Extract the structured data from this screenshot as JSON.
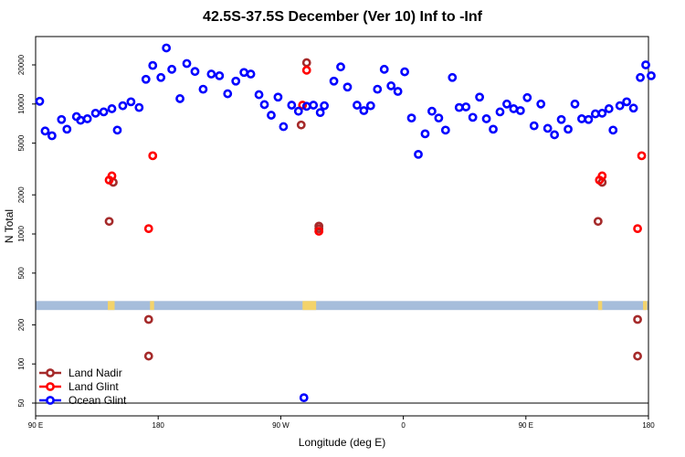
{
  "chart_data": {
    "type": "scatter",
    "title": "42.5S-37.5S December (Ver 10)   Inf to -Inf",
    "xlabel": "Longitude (deg E)",
    "ylabel": "N Total",
    "y_scale": "log",
    "ylim": [
      50,
      35000
    ],
    "x_ticks": [
      {
        "value": 90,
        "label": "90 E"
      },
      {
        "value": 180,
        "label": "180"
      },
      {
        "value": 270,
        "label": "90 W"
      },
      {
        "value": 360,
        "label": "0"
      },
      {
        "value": 450,
        "label": "90 E"
      },
      {
        "value": 540,
        "label": "180"
      }
    ],
    "xlim": [
      90,
      540
    ],
    "y_ticks": [
      50,
      100,
      200,
      500,
      1000,
      2000,
      5000,
      10000,
      20000
    ],
    "y_tick_labels": [
      "50",
      "100",
      "200",
      "500",
      "1000",
      "2000",
      "5000",
      "10000",
      "20000"
    ],
    "legend": {
      "position": "bottom-left"
    },
    "reference_line": 50,
    "land_band": {
      "y_range": [
        260,
        305
      ],
      "ocean_color": "#a6bddb",
      "land_color": "#f3d36b",
      "land_segments": [
        [
          143,
          148
        ],
        [
          174,
          177
        ],
        [
          286,
          296
        ],
        [
          503,
          506
        ],
        [
          536,
          539
        ]
      ]
    },
    "series": [
      {
        "name": "Land Nadir",
        "color": "#a52a2a",
        "points": [
          [
            144,
            1250
          ],
          [
            147,
            2500
          ],
          [
            173,
            220
          ],
          [
            173,
            115
          ],
          [
            285,
            6900
          ],
          [
            289,
            20800
          ],
          [
            298,
            1150
          ],
          [
            298,
            1100
          ],
          [
            503,
            1250
          ],
          [
            506,
            2500
          ],
          [
            532,
            220
          ],
          [
            532,
            115
          ]
        ]
      },
      {
        "name": "Land Glint",
        "color": "#ff0000",
        "points": [
          [
            144,
            2600
          ],
          [
            146,
            2800
          ],
          [
            173,
            1100
          ],
          [
            176,
            4000
          ],
          [
            286,
            9800
          ],
          [
            289,
            18200
          ],
          [
            298,
            1050
          ],
          [
            504,
            2600
          ],
          [
            506,
            2800
          ],
          [
            532,
            1100
          ],
          [
            535,
            4000
          ]
        ]
      },
      {
        "name": "Ocean Glint",
        "color": "#0000ff",
        "points": [
          [
            93,
            10500
          ],
          [
            97,
            6200
          ],
          [
            102,
            5700
          ],
          [
            109,
            7600
          ],
          [
            113,
            6400
          ],
          [
            120,
            8000
          ],
          [
            123,
            7500
          ],
          [
            128,
            7700
          ],
          [
            134,
            8500
          ],
          [
            140,
            8700
          ],
          [
            146,
            9200
          ],
          [
            150,
            6300
          ],
          [
            154,
            9700
          ],
          [
            160,
            10400
          ],
          [
            166,
            9400
          ],
          [
            171,
            15500
          ],
          [
            176,
            19800
          ],
          [
            182,
            16000
          ],
          [
            186,
            27000
          ],
          [
            190,
            18500
          ],
          [
            196,
            11000
          ],
          [
            201,
            20500
          ],
          [
            207,
            17800
          ],
          [
            213,
            13000
          ],
          [
            219,
            17000
          ],
          [
            225,
            16500
          ],
          [
            231,
            12000
          ],
          [
            237,
            15000
          ],
          [
            243,
            17500
          ],
          [
            248,
            17000
          ],
          [
            254,
            11800
          ],
          [
            258,
            9900
          ],
          [
            263,
            8200
          ],
          [
            268,
            11300
          ],
          [
            272,
            6700
          ],
          [
            278,
            9800
          ],
          [
            283,
            8800
          ],
          [
            289,
            9600
          ],
          [
            294,
            9800
          ],
          [
            299,
            8600
          ],
          [
            287,
            55
          ],
          [
            302,
            9700
          ],
          [
            309,
            15000
          ],
          [
            314,
            19300
          ],
          [
            319,
            13500
          ],
          [
            326,
            9800
          ],
          [
            331,
            8900
          ],
          [
            336,
            9700
          ],
          [
            341,
            13000
          ],
          [
            346,
            18500
          ],
          [
            351,
            13800
          ],
          [
            356,
            12500
          ],
          [
            361,
            17700
          ],
          [
            366,
            7800
          ],
          [
            371,
            4100
          ],
          [
            376,
            5900
          ],
          [
            381,
            8800
          ],
          [
            386,
            7800
          ],
          [
            391,
            6300
          ],
          [
            396,
            16000
          ],
          [
            401,
            9400
          ],
          [
            406,
            9500
          ],
          [
            411,
            7900
          ],
          [
            416,
            11300
          ],
          [
            421,
            7700
          ],
          [
            426,
            6400
          ],
          [
            431,
            8700
          ],
          [
            436,
            10000
          ],
          [
            441,
            9200
          ],
          [
            446,
            8900
          ],
          [
            451,
            11200
          ],
          [
            456,
            6800
          ],
          [
            461,
            10000
          ],
          [
            466,
            6500
          ],
          [
            471,
            5800
          ],
          [
            476,
            7600
          ],
          [
            481,
            6400
          ],
          [
            486,
            10000
          ],
          [
            491,
            7700
          ],
          [
            496,
            7600
          ],
          [
            501,
            8400
          ],
          [
            506,
            8500
          ],
          [
            511,
            9200
          ],
          [
            514,
            6300
          ],
          [
            519,
            9700
          ],
          [
            524,
            10400
          ],
          [
            529,
            9300
          ],
          [
            534,
            16000
          ],
          [
            538,
            20000
          ],
          [
            542,
            16500
          ]
        ]
      }
    ]
  }
}
